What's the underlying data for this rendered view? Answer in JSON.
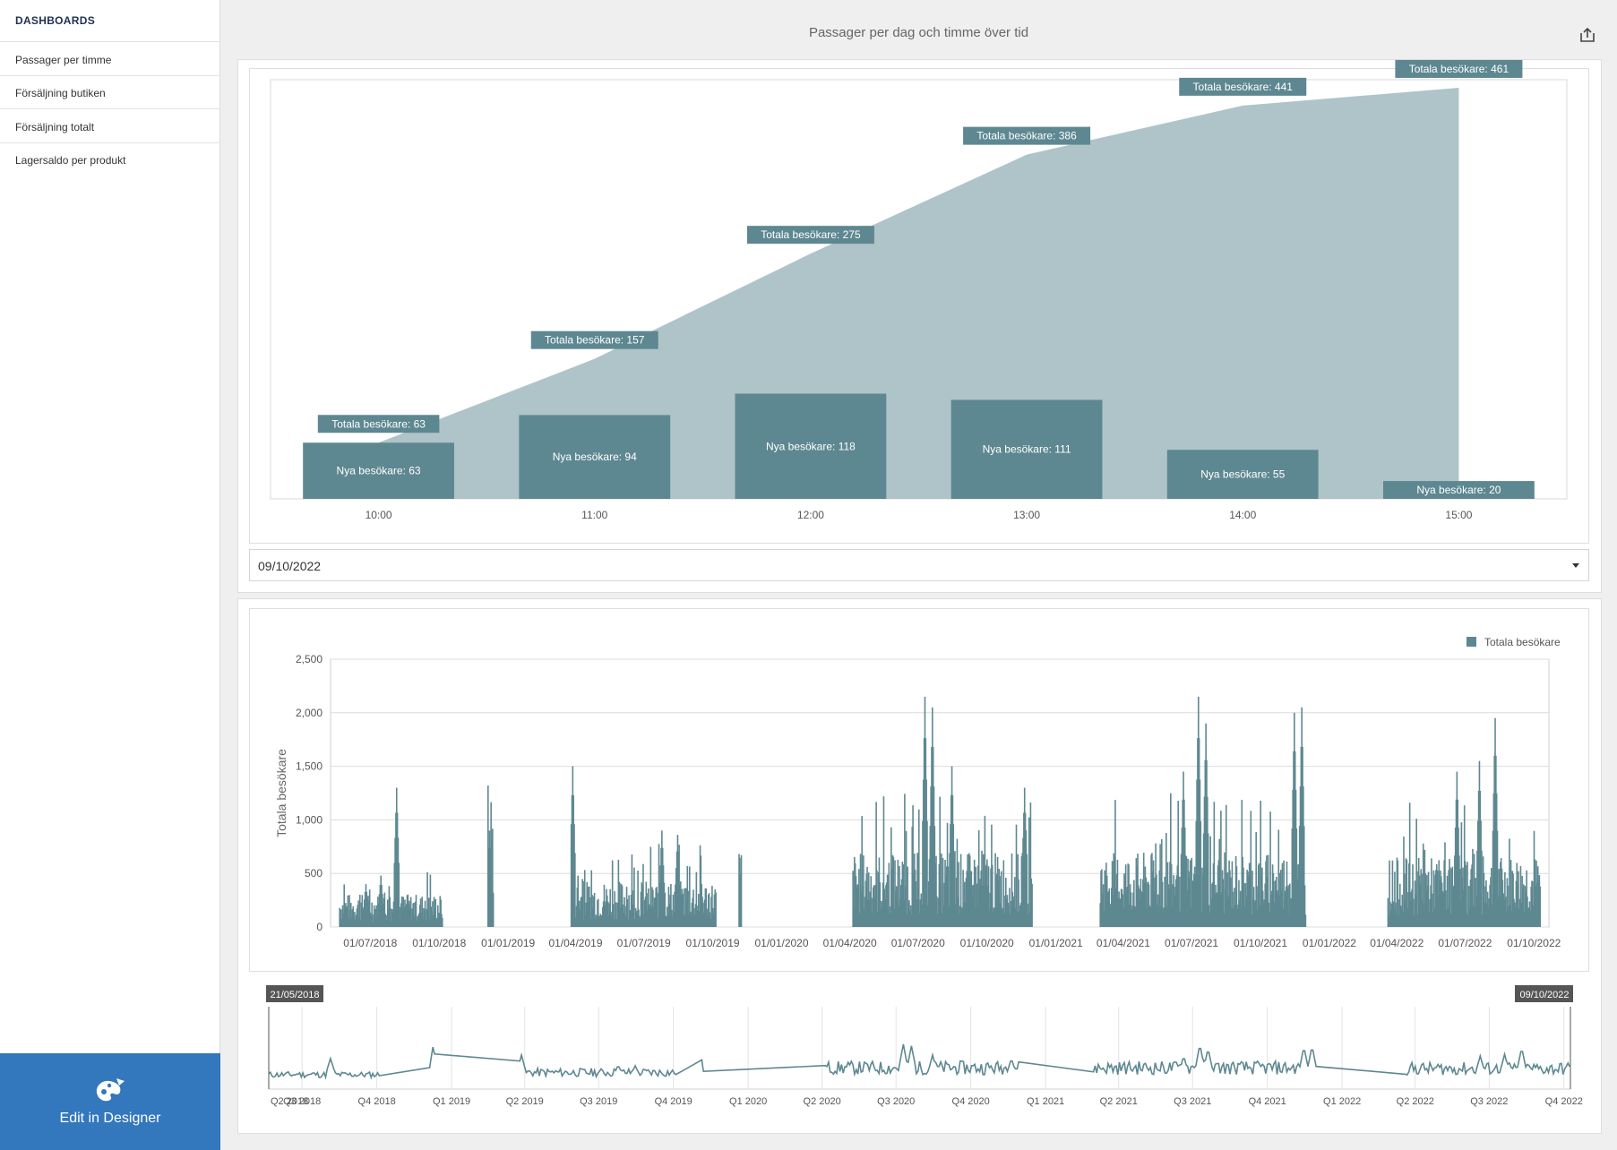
{
  "sidebar": {
    "title": "DASHBOARDS",
    "items": [
      {
        "label": "Passager per timme"
      },
      {
        "label": "Försäljning butiken"
      },
      {
        "label": "Försäljning totalt"
      },
      {
        "label": "Lagersaldo per produkt"
      }
    ],
    "designer_button": {
      "label": "Edit in Designer",
      "icon": "designer-palette-icon"
    }
  },
  "header": {
    "title": "Passager per dag och timme över tid",
    "share_icon": "export-icon"
  },
  "colors": {
    "bar": "#5e8891",
    "area": "#afc4c8",
    "line": "#5e8891",
    "label_bg": "#5e8891",
    "sidebar_button": "#3377bd"
  },
  "date_filter": {
    "value": "09/10/2022"
  },
  "chart_data": [
    {
      "type": "bar",
      "categories": [
        "10:00",
        "11:00",
        "12:00",
        "13:00",
        "14:00",
        "15:00"
      ],
      "series": [
        {
          "name": "Nya besökare",
          "type": "bar",
          "values": [
            63,
            94,
            118,
            111,
            55,
            20
          ]
        },
        {
          "name": "Totala besökare",
          "type": "area",
          "values": [
            63,
            157,
            275,
            386,
            441,
            461
          ]
        }
      ],
      "label_prefixes": {
        "bar": "Nya besökare: ",
        "area": "Totala besökare: "
      },
      "legend": false
    },
    {
      "type": "bar",
      "ylabel": "Totala besökare",
      "ylim": [
        0,
        2500
      ],
      "yticks": [
        "0",
        "500",
        "1,000",
        "1,500",
        "2,000",
        "2,500"
      ],
      "xticks": [
        "01/07/2018",
        "01/10/2018",
        "01/01/2019",
        "01/04/2019",
        "01/07/2019",
        "01/10/2019",
        "01/01/2020",
        "01/04/2020",
        "01/07/2020",
        "01/10/2020",
        "01/01/2021",
        "01/04/2021",
        "01/07/2021",
        "01/10/2021",
        "01/01/2022",
        "01/04/2022",
        "01/07/2022",
        "01/10/2022"
      ],
      "xrange": [
        "2018-05-21",
        "2022-10-09"
      ],
      "legend": {
        "entries": [
          "Totala besökare"
        ],
        "position": "top-right"
      },
      "series": [
        {
          "name": "Totala besökare",
          "daily_activity_segments": [
            {
              "start": "2018-05-21",
              "end": "2018-10-05",
              "avg": 200,
              "peaks": [
                [
                  "2018-06-25",
                  400
                ],
                [
                  "2018-07-15",
                  480
                ],
                [
                  "2018-08-05",
                  1300
                ]
              ]
            },
            {
              "start": "2018-12-05",
              "end": "2018-12-12",
              "avg": 880,
              "peaks": [
                [
                  "2018-12-07",
                  900
                ]
              ]
            },
            {
              "start": "2019-03-26",
              "end": "2019-10-05",
              "avg": 280,
              "peaks": [
                [
                  "2019-03-28",
                  1500
                ],
                [
                  "2019-07-25",
                  900
                ],
                [
                  "2019-08-15",
                  860
                ]
              ]
            },
            {
              "start": "2019-11-05",
              "end": "2019-11-08",
              "avg": 500,
              "peaks": []
            },
            {
              "start": "2020-04-05",
              "end": "2020-11-30",
              "avg": 450,
              "peaks": [
                [
                  "2020-07-10",
                  2150
                ],
                [
                  "2020-07-20",
                  2050
                ],
                [
                  "2020-08-15",
                  1500
                ],
                [
                  "2020-11-20",
                  1300
                ]
              ]
            },
            {
              "start": "2021-03-01",
              "end": "2021-11-30",
              "avg": 450,
              "peaks": [
                [
                  "2021-06-20",
                  1450
                ],
                [
                  "2021-07-10",
                  2150
                ],
                [
                  "2021-07-20",
                  1900
                ],
                [
                  "2021-11-15",
                  2000
                ],
                [
                  "2021-11-25",
                  2050
                ]
              ]
            },
            {
              "start": "2022-03-20",
              "end": "2022-10-09",
              "avg": 420,
              "peaks": [
                [
                  "2022-06-20",
                  1450
                ],
                [
                  "2022-07-20",
                  1550
                ],
                [
                  "2022-08-10",
                  1950
                ]
              ]
            }
          ]
        }
      ]
    },
    {
      "type": "line",
      "xticks": [
        "Q2 2018",
        "Q3 2018",
        "Q4 2018",
        "Q1 2019",
        "Q2 2019",
        "Q3 2019",
        "Q4 2019",
        "Q1 2020",
        "Q2 2020",
        "Q3 2020",
        "Q4 2020",
        "Q1 2021",
        "Q2 2021",
        "Q3 2021",
        "Q4 2021",
        "Q1 2022",
        "Q2 2022",
        "Q3 2022",
        "Q4 2022"
      ],
      "range_start": "21/05/2018",
      "range_end": "09/10/2022"
    }
  ]
}
